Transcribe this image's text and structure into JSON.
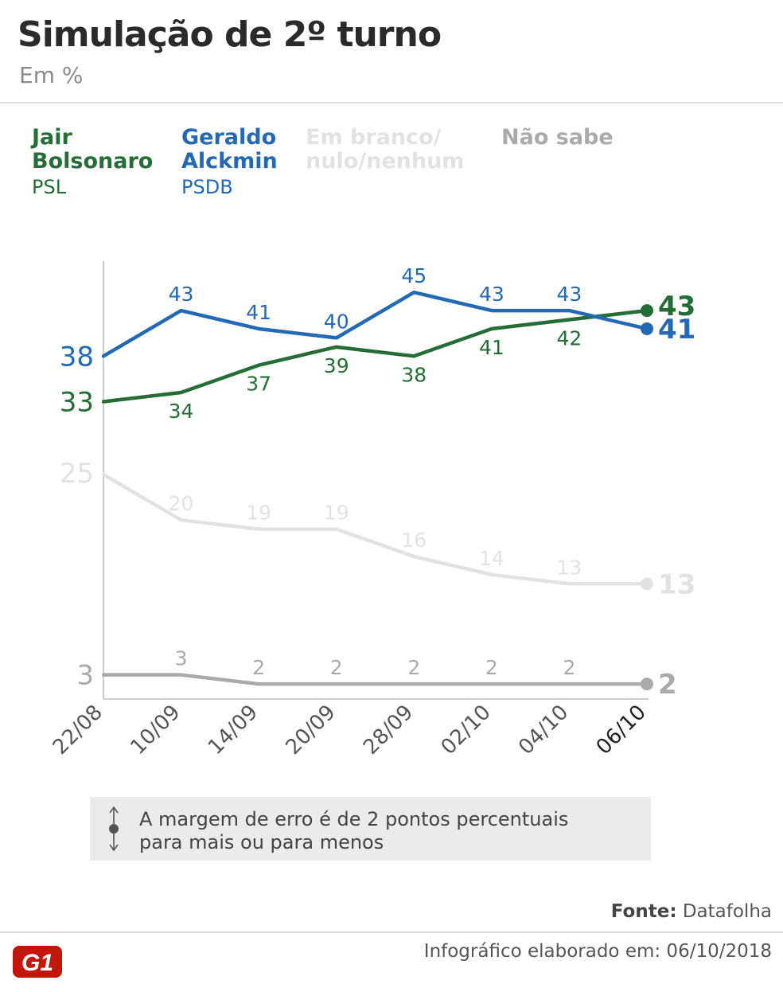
{
  "header": {
    "title": "Simulação de 2º turno",
    "subtitle": "Em %"
  },
  "legend": [
    {
      "name": "Jair\nBolsonaro",
      "party": "PSL",
      "color": "#256d37"
    },
    {
      "name": "Geraldo\nAlckmin",
      "party": "PSDB",
      "color": "#2469b3"
    },
    {
      "name": "Em branco/\nnulo/nenhum",
      "party": "",
      "color": "#e2e2e2"
    },
    {
      "name": "Não sabe",
      "party": "",
      "color": "#aaaaaa"
    }
  ],
  "chart_data": {
    "type": "line",
    "categories": [
      "22/08",
      "10/09",
      "14/09",
      "20/09",
      "28/09",
      "02/10",
      "04/10",
      "06/10"
    ],
    "series": [
      {
        "name": "Jair Bolsonaro",
        "color": "#256d37",
        "values": [
          33,
          34,
          37,
          39,
          38,
          41,
          42,
          43
        ]
      },
      {
        "name": "Geraldo Alckmin",
        "color": "#2469b3",
        "values": [
          38,
          43,
          41,
          40,
          45,
          43,
          43,
          41
        ]
      },
      {
        "name": "Em branco/nulo/nenhum",
        "color": "#e2e2e2",
        "values": [
          25,
          20,
          19,
          19,
          16,
          14,
          13,
          13
        ]
      },
      {
        "name": "Não sabe",
        "color": "#aaaaaa",
        "values": [
          3,
          3,
          2,
          2,
          2,
          2,
          2,
          2
        ]
      }
    ],
    "ylim": [
      0,
      50
    ],
    "grid": false,
    "legend_position": "top"
  },
  "note": {
    "text": "A margem de erro é de 2 pontos percentuais\npara mais ou para menos",
    "icon": "error-margin-icon"
  },
  "footer": {
    "source_label": "Fonte:",
    "source": "Datafolha",
    "credit": "Infográfico elaborado em: 06/10/2018",
    "logo": "G1"
  }
}
